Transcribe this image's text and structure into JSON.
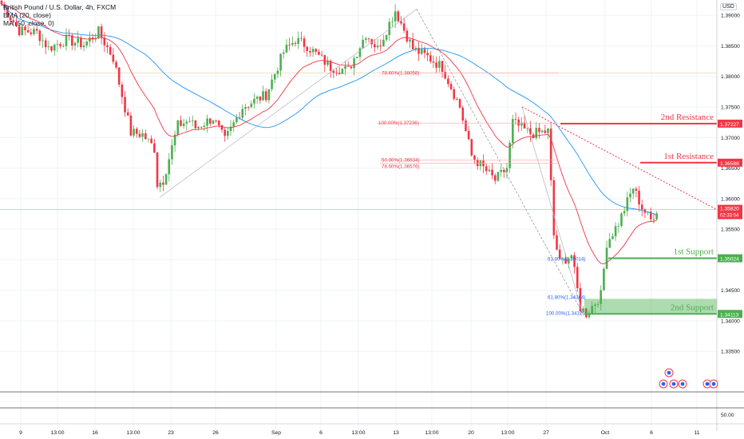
{
  "legend": {
    "symbol": "British Pound / U.S. Dollar, 4h, FXCM",
    "ema": "EMA (20, close)",
    "ma": "MA (50, close, 0)"
  },
  "currency_button": "USD",
  "colors": {
    "up": "#4caf50",
    "down": "#f23645",
    "ema": "#f23645",
    "ma": "#2196f3",
    "resistance": "#f23645",
    "support": "#4caf50",
    "current": "#f23645"
  },
  "chart_data": {
    "type": "candlestick",
    "title": "British Pound / U.S. Dollar, 4h, FXCM",
    "ylim": [
      1.3285,
      1.3925
    ],
    "y_ticks": [
      "1.39000",
      "1.38500",
      "1.38000",
      "1.37500",
      "1.37000",
      "1.36500",
      "1.36000",
      "1.35500",
      "1.35000",
      "1.34500",
      "1.34000",
      "1.33500"
    ],
    "x_ticks": [
      "9",
      "13:00",
      "16",
      "13:00",
      "23",
      "26",
      "Sep",
      "6",
      "13:00",
      "13",
      "13:00",
      "20",
      "13:00",
      "27",
      "Oct",
      "6",
      "11"
    ],
    "levels": [
      {
        "label": "2nd Resistance",
        "price": "1.37227",
        "value": 1.37227,
        "kind": "resistance"
      },
      {
        "label": "1st Resistance",
        "price": "1.36588",
        "value": 1.36588,
        "kind": "resistance"
      },
      {
        "label": "1st Support",
        "price": "1.35024",
        "value": 1.35024,
        "kind": "support"
      },
      {
        "label": "2nd Support",
        "price": "1.34113",
        "value": 1.34113,
        "kind": "support"
      }
    ],
    "current_price": {
      "price": "1.35820",
      "value": 1.3582,
      "countdown": "02:33:04"
    },
    "fib_labels": [
      "78.60%(1.38058)",
      "100.00%(1.37236)",
      "50.00%(1.36634)",
      "78.60%(1.36576)",
      "61.80%(1.35014)",
      "61.80%(1.34384)",
      "100.00%(1.34126)"
    ],
    "fib_values": [
      1.38058,
      1.37236,
      1.36634,
      1.36576,
      1.35014,
      1.34384,
      1.34126
    ],
    "horizontal_lines": [
      1.38058,
      1.3582
    ],
    "trendline": [
      [
        1.375,
        1.3582
      ]
    ],
    "subpane": {
      "value_label": "50.00",
      "value": 50
    }
  }
}
